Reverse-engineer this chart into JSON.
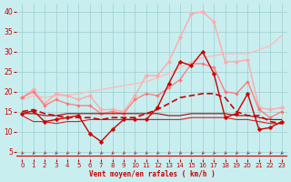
{
  "xlabel": "Vent moyen/en rafales ( km/h )",
  "xlim": [
    -0.5,
    23.5
  ],
  "ylim": [
    3,
    42
  ],
  "yticks": [
    5,
    10,
    15,
    20,
    25,
    30,
    35,
    40
  ],
  "xticks": [
    0,
    1,
    2,
    3,
    4,
    5,
    6,
    7,
    8,
    9,
    10,
    11,
    12,
    13,
    14,
    15,
    16,
    17,
    18,
    19,
    20,
    21,
    22,
    23
  ],
  "bg_color": "#c8eef0",
  "grid_color": "#9ecece",
  "line_dark_marker": {
    "x": [
      0,
      1,
      2,
      3,
      4,
      5,
      6,
      7,
      8,
      9,
      10,
      11,
      12,
      13,
      14,
      15,
      16,
      17,
      18,
      19,
      20,
      21,
      22,
      23
    ],
    "y": [
      14.5,
      15.2,
      12.5,
      13.0,
      13.5,
      14.0,
      9.5,
      7.5,
      10.5,
      13.0,
      13.0,
      13.0,
      16.0,
      22.0,
      27.5,
      26.5,
      30.0,
      24.5,
      13.5,
      14.5,
      19.5,
      10.5,
      11.0,
      12.5
    ],
    "color": "#cc0000",
    "lw": 1.0,
    "marker": "D",
    "ms": 2.5
  },
  "line_dark_flat": {
    "x": [
      0,
      1,
      2,
      3,
      4,
      5,
      6,
      7,
      8,
      9,
      10,
      11,
      12,
      13,
      14,
      15,
      16,
      17,
      18,
      19,
      20,
      21,
      22,
      23
    ],
    "y": [
      14.5,
      14.5,
      14.0,
      14.0,
      14.5,
      14.5,
      14.5,
      14.5,
      14.5,
      14.5,
      14.5,
      14.5,
      14.5,
      14.0,
      14.0,
      14.5,
      14.5,
      14.5,
      14.5,
      14.0,
      14.0,
      13.5,
      13.0,
      13.0
    ],
    "color": "#aa0000",
    "lw": 0.8
  },
  "line_dark_dashed": {
    "x": [
      0,
      1,
      2,
      3,
      4,
      5,
      6,
      7,
      8,
      9,
      10,
      11,
      12,
      13,
      14,
      15,
      16,
      17,
      18,
      19,
      20,
      21,
      22,
      23
    ],
    "y": [
      15.0,
      15.5,
      14.5,
      14.0,
      13.5,
      13.5,
      13.5,
      13.0,
      13.5,
      13.5,
      13.5,
      14.5,
      15.5,
      17.0,
      18.5,
      19.0,
      19.5,
      19.5,
      18.5,
      15.0,
      14.0,
      14.0,
      12.5,
      12.0
    ],
    "color": "#cc0000",
    "lw": 1.2,
    "ls": "--"
  },
  "line_dark_solid2": {
    "x": [
      0,
      1,
      2,
      3,
      4,
      5,
      6,
      7,
      8,
      9,
      10,
      11,
      12,
      13,
      14,
      15,
      16,
      17,
      18,
      19,
      20,
      21,
      22,
      23
    ],
    "y": [
      14.0,
      12.5,
      12.5,
      12.0,
      12.5,
      12.5,
      13.0,
      13.0,
      13.0,
      13.0,
      13.0,
      13.0,
      13.0,
      13.0,
      13.0,
      13.5,
      13.5,
      13.5,
      13.5,
      13.0,
      13.0,
      12.5,
      12.0,
      12.0
    ],
    "color": "#cc2222",
    "lw": 0.8
  },
  "line_light_marker": {
    "x": [
      0,
      1,
      2,
      3,
      4,
      5,
      6,
      7,
      8,
      9,
      10,
      11,
      12,
      13,
      14,
      15,
      16,
      17,
      18,
      19,
      20,
      21,
      22,
      23
    ],
    "y": [
      18.5,
      20.5,
      17.0,
      19.5,
      19.0,
      18.0,
      19.0,
      15.5,
      15.5,
      15.0,
      19.0,
      24.0,
      24.0,
      27.5,
      33.5,
      39.5,
      40.0,
      37.5,
      27.5,
      27.5,
      28.0,
      16.0,
      15.5,
      16.0
    ],
    "color": "#ffaaaa",
    "lw": 1.0,
    "marker": "D",
    "ms": 2.5
  },
  "line_light_linear": {
    "x": [
      0,
      1,
      2,
      3,
      4,
      5,
      6,
      7,
      8,
      9,
      10,
      11,
      12,
      13,
      14,
      15,
      16,
      17,
      18,
      19,
      20,
      21,
      22,
      23
    ],
    "y": [
      18.0,
      19.0,
      18.5,
      19.0,
      19.0,
      19.5,
      20.0,
      20.5,
      21.0,
      21.5,
      22.0,
      22.5,
      23.5,
      24.5,
      26.0,
      27.5,
      28.5,
      29.0,
      29.5,
      29.5,
      29.5,
      30.5,
      31.5,
      34.0
    ],
    "color": "#ffbbbb",
    "lw": 1.0
  },
  "line_medium_marker": {
    "x": [
      0,
      1,
      2,
      3,
      4,
      5,
      6,
      7,
      8,
      9,
      10,
      11,
      12,
      13,
      14,
      15,
      16,
      17,
      18,
      19,
      20,
      21,
      22,
      23
    ],
    "y": [
      18.5,
      20.0,
      16.5,
      18.0,
      17.0,
      16.5,
      16.5,
      14.5,
      15.0,
      14.5,
      18.0,
      19.5,
      19.0,
      21.0,
      23.0,
      27.0,
      27.0,
      26.0,
      20.0,
      19.5,
      22.5,
      15.5,
      13.5,
      15.0
    ],
    "color": "#ff7777",
    "lw": 0.9,
    "marker": "D",
    "ms": 2.0
  },
  "arrow_color": "#cc2222",
  "hline_y": 4.2,
  "hline_color": "#cc0000"
}
